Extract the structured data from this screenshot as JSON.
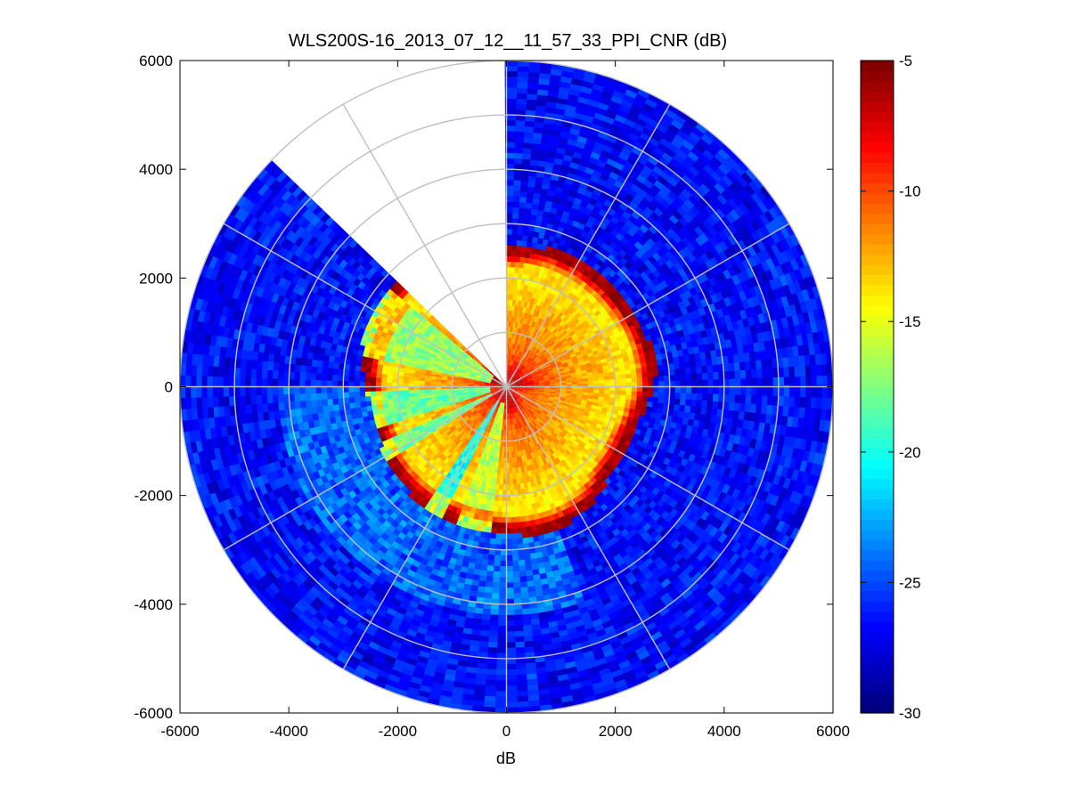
{
  "chart_data": {
    "type": "heatmap",
    "subtype": "polar-ppi",
    "title": "WLS200S-16_2013_07_12__11_57_33_PPI_CNR (dB)",
    "xlabel": "dB",
    "ylabel": "",
    "xlim": [
      -6000,
      6000
    ],
    "ylim": [
      -6000,
      6000
    ],
    "x_ticks": [
      -6000,
      -4000,
      -2000,
      0,
      2000,
      4000,
      6000
    ],
    "y_ticks": [
      -6000,
      -4000,
      -2000,
      0,
      2000,
      4000,
      6000
    ],
    "x_tick_labels": [
      "-6000",
      "-4000",
      "-2000",
      "0",
      "2000",
      "4000",
      "6000"
    ],
    "y_tick_labels": [
      "-6000",
      "-4000",
      "-2000",
      "0",
      "2000",
      "4000",
      "6000"
    ],
    "max_range": 6000,
    "range_rings": [
      1000,
      2000,
      3000,
      4000,
      5000,
      6000
    ],
    "spoke_angles_deg": [
      0,
      30,
      60,
      90,
      120,
      150,
      180,
      210,
      240,
      270,
      300,
      330
    ],
    "no_data_sector_deg": [
      90,
      136
    ],
    "colorbar": {
      "colormap": "jet",
      "clim": [
        -30,
        -5
      ],
      "ticks": [
        -5,
        -10,
        -15,
        -20,
        -25,
        -30
      ],
      "tick_labels": [
        "-5",
        "-10",
        "-15",
        "-20",
        "-25",
        "-30"
      ]
    },
    "cnr_profile": {
      "range_m": [
        0,
        200,
        500,
        900,
        1400,
        1900,
        2250,
        2450,
        2550,
        2750,
        3200,
        4500,
        6000
      ],
      "cnr_db": [
        -6,
        -7,
        -10,
        -11.5,
        -12.5,
        -13.5,
        -14,
        -8,
        -6,
        -27,
        -26,
        -26.5,
        -27
      ]
    },
    "weak_return_sectors": [
      {
        "az_deg": [
          141,
          168
        ],
        "value_db": -17
      },
      {
        "az_deg": [
          182,
          198
        ],
        "value_db": -18
      },
      {
        "az_deg": [
          204,
          212
        ],
        "value_db": -18
      },
      {
        "az_deg": [
          236,
          244
        ],
        "value_db": -20
      },
      {
        "az_deg": [
          250,
          264
        ],
        "value_db": -16
      }
    ]
  }
}
